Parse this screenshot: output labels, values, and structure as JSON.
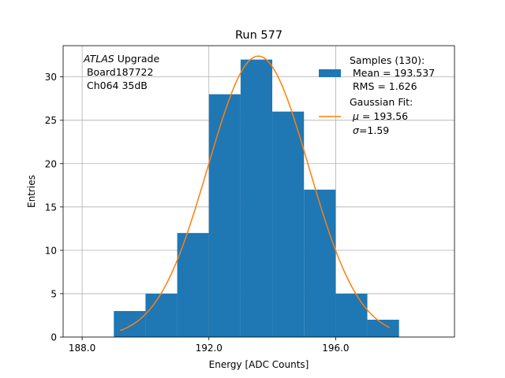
{
  "chart_data": {
    "type": "bar",
    "title": "Run 577",
    "xlabel": "Energy [ADC Counts]",
    "ylabel": "Entries",
    "xlim": [
      187.4,
      199.75
    ],
    "ylim": [
      0,
      33.6
    ],
    "grid": true,
    "x_ticks": [
      188,
      192,
      196
    ],
    "x_tick_labels": [
      "188.0",
      "192.0",
      "196.0"
    ],
    "y_ticks": [
      0,
      5,
      10,
      15,
      20,
      25,
      30
    ],
    "y_tick_labels": [
      "0",
      "5",
      "10",
      "15",
      "20",
      "25",
      "30"
    ],
    "bins": [
      {
        "x0": 189,
        "x1": 190,
        "count": 3
      },
      {
        "x0": 190,
        "x1": 191,
        "count": 5
      },
      {
        "x0": 191,
        "x1": 192,
        "count": 12
      },
      {
        "x0": 192,
        "x1": 193,
        "count": 28
      },
      {
        "x0": 193,
        "x1": 194,
        "count": 32
      },
      {
        "x0": 194,
        "x1": 195,
        "count": 26
      },
      {
        "x0": 195,
        "x1": 196,
        "count": 17
      },
      {
        "x0": 196,
        "x1": 197,
        "count": 5
      },
      {
        "x0": 197,
        "x1": 198,
        "count": 2
      }
    ],
    "fit": {
      "mu": 193.56,
      "sigma": 1.59,
      "amplitude": 32.4,
      "x_range": [
        189.2,
        197.7
      ]
    },
    "colors": {
      "bars": "#1f77b4",
      "fit": "#ff7f0e",
      "grid": "#b0b0b0"
    },
    "annotation": {
      "experiment": "ATLAS",
      "line1_rest": " Upgrade",
      "line2": " Board187722",
      "line3": " Ch064 35dB"
    },
    "legend": {
      "placement": "top-right",
      "samples_line1": "Samples (130):",
      "samples_line2": " Mean = 193.537",
      "samples_line3": " RMS = 1.626",
      "fit_line1": "Gaussian Fit:",
      "fit_line2_symbol": "μ",
      "fit_line2_rest": " = 193.56",
      "fit_line3_symbol": "σ",
      "fit_line3_rest": "=1.59"
    }
  }
}
